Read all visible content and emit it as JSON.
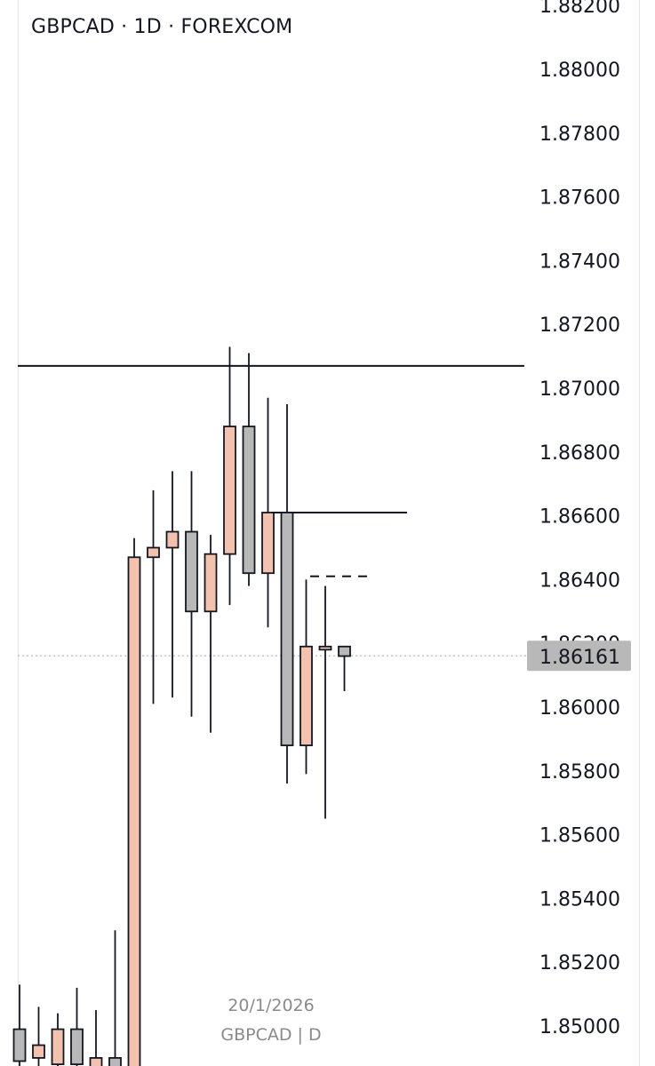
{
  "header": {
    "title": "GBPCAD · 1D · FOREXCOM"
  },
  "footer": {
    "date": "20/1/2026",
    "symbol": "GBPCAD | D"
  },
  "colors": {
    "bullish_fill": "#f2c2ae",
    "bearish_fill": "#b8b8b8",
    "outline": "#131722",
    "price_label_bg": "#b8b8b8",
    "axis_text": "#131722",
    "current_price_line": "#b0b0b0"
  },
  "chart_data": {
    "type": "candlestick",
    "symbol": "GBPCAD",
    "interval": "1D",
    "source": "FOREXCOM",
    "y_axis": {
      "ticks": [
        "1.88200",
        "1.88000",
        "1.87800",
        "1.87600",
        "1.87400",
        "1.87200",
        "1.87000",
        "1.86800",
        "1.86600",
        "1.86400",
        "1.86200",
        "1.86000",
        "1.85800",
        "1.85600",
        "1.85400",
        "1.85200",
        "1.85000"
      ],
      "range": [
        1.8487,
        1.882
      ]
    },
    "current_price": 1.86161,
    "current_price_label": "1.86161",
    "candles": [
      {
        "o": 1.8499,
        "h": 1.8513,
        "l": 1.848,
        "c": 1.8489
      },
      {
        "o": 1.849,
        "h": 1.8506,
        "l": 1.848,
        "c": 1.8494
      },
      {
        "o": 1.8488,
        "h": 1.8504,
        "l": 1.848,
        "c": 1.8499
      },
      {
        "o": 1.8499,
        "h": 1.8512,
        "l": 1.848,
        "c": 1.8488
      },
      {
        "o": 1.8485,
        "h": 1.8505,
        "l": 1.848,
        "c": 1.849
      },
      {
        "o": 1.849,
        "h": 1.853,
        "l": 1.848,
        "c": 1.8485
      },
      {
        "o": 1.8483,
        "h": 1.8653,
        "l": 1.848,
        "c": 1.8647
      },
      {
        "o": 1.8647,
        "h": 1.8668,
        "l": 1.8601,
        "c": 1.865
      },
      {
        "o": 1.865,
        "h": 1.8674,
        "l": 1.8603,
        "c": 1.8655
      },
      {
        "o": 1.8655,
        "h": 1.8674,
        "l": 1.8597,
        "c": 1.863
      },
      {
        "o": 1.863,
        "h": 1.8654,
        "l": 1.8592,
        "c": 1.8648
      },
      {
        "o": 1.8648,
        "h": 1.8713,
        "l": 1.8632,
        "c": 1.8688
      },
      {
        "o": 1.8688,
        "h": 1.8711,
        "l": 1.8638,
        "c": 1.8642
      },
      {
        "o": 1.8642,
        "h": 1.8697,
        "l": 1.8625,
        "c": 1.8661
      },
      {
        "o": 1.8661,
        "h": 1.8695,
        "l": 1.8576,
        "c": 1.8588
      },
      {
        "o": 1.8588,
        "h": 1.864,
        "l": 1.8579,
        "c": 1.8619
      },
      {
        "o": 1.8618,
        "h": 1.8638,
        "l": 1.8565,
        "c": 1.8619
      },
      {
        "o": 1.8619,
        "h": 1.8619,
        "l": 1.8605,
        "c": 1.8616
      }
    ],
    "annotations": {
      "resistance_line": 1.8707,
      "level_line": 1.8661,
      "dashed_level": 1.8641
    },
    "grid": false
  }
}
